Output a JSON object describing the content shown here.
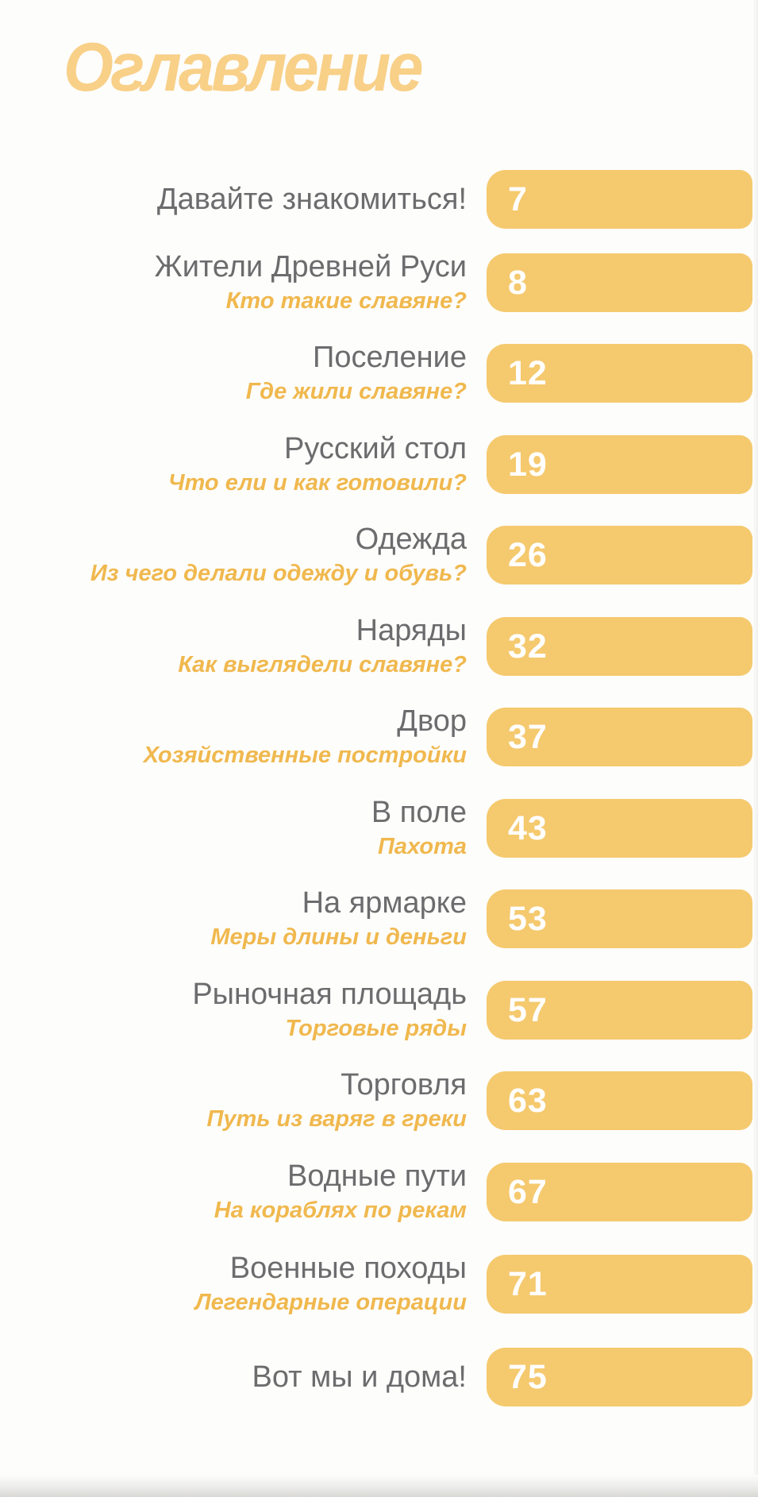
{
  "page": {
    "title": "Оглавление",
    "colors": {
      "heading": "#f8d088",
      "pill": "#f5c96e",
      "title_text": "#6c6c6e",
      "subtitle_text": "#f0b84e",
      "page_number": "#ffffff"
    },
    "entries": [
      {
        "title": "Давайте знакомиться!",
        "subtitle": "",
        "page": "7"
      },
      {
        "title": "Жители Древней Руси",
        "subtitle": "Кто такие славяне?",
        "page": "8"
      },
      {
        "title": "Поселение",
        "subtitle": "Где жили славяне?",
        "page": "12"
      },
      {
        "title": "Русский стол",
        "subtitle": "Что ели и как готовили?",
        "page": "19"
      },
      {
        "title": "Одежда",
        "subtitle": "Из чего делали одежду и обувь?",
        "page": "26"
      },
      {
        "title": "Наряды",
        "subtitle": "Как выглядели славяне?",
        "page": "32"
      },
      {
        "title": "Двор",
        "subtitle": "Хозяйственные постройки",
        "page": "37"
      },
      {
        "title": "В поле",
        "subtitle": "Пахота",
        "page": "43"
      },
      {
        "title": "На ярмарке",
        "subtitle": "Меры длины и деньги",
        "page": "53"
      },
      {
        "title": "Рыночная площадь",
        "subtitle": "Торговые ряды",
        "page": "57"
      },
      {
        "title": "Торговля",
        "subtitle": "Путь из варяг в греки",
        "page": "63"
      },
      {
        "title": "Водные пути",
        "subtitle": "На кораблях по рекам",
        "page": "67"
      },
      {
        "title": "Военные походы",
        "subtitle": "Легендарные операции",
        "page": "71"
      },
      {
        "title": "Вот мы и дома!",
        "subtitle": "",
        "page": "75"
      }
    ]
  }
}
